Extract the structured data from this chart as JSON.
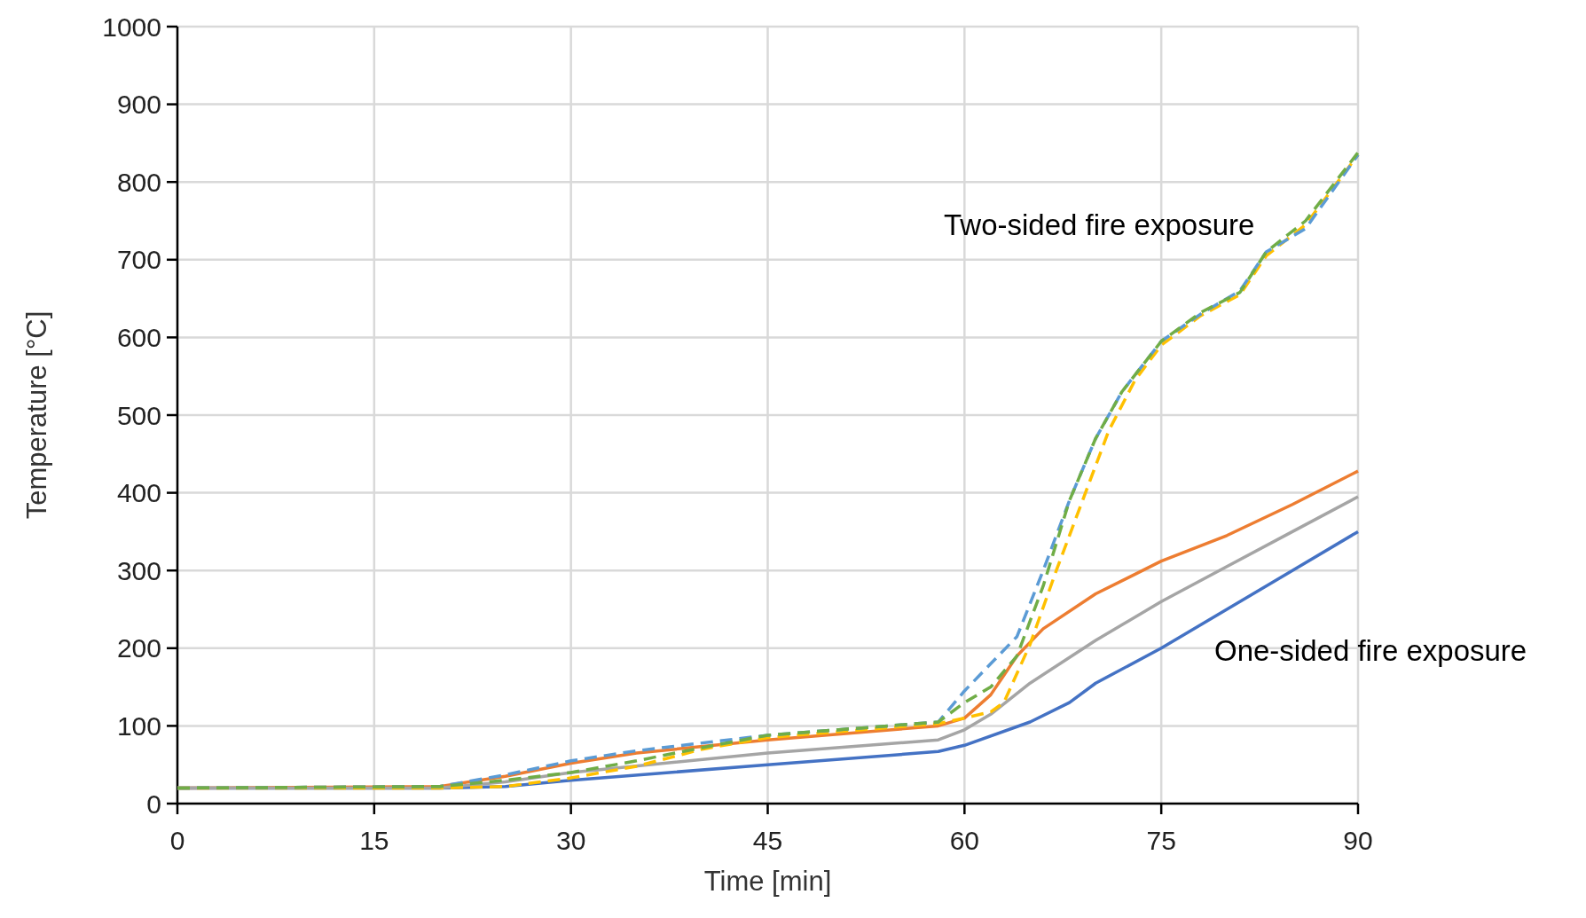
{
  "chart_data": {
    "type": "line",
    "xlabel": "Time [min]",
    "ylabel": "Temperature [°C]",
    "xlim": [
      0,
      90
    ],
    "ylim": [
      0,
      1000
    ],
    "xticks": [
      0,
      15,
      30,
      45,
      60,
      75,
      90
    ],
    "yticks": [
      0,
      100,
      200,
      300,
      400,
      500,
      600,
      700,
      800,
      900,
      1000
    ],
    "grid": true,
    "marker": "none",
    "annotations": [
      "Two-sided fire exposure",
      "One-sided fire exposure"
    ],
    "series": [
      {
        "color": "#4472c4",
        "line_style": "solid",
        "x": [
          0,
          20,
          25,
          30,
          45,
          58,
          60,
          65,
          68,
          70,
          75,
          80,
          85,
          90
        ],
        "values": [
          20,
          20,
          22,
          30,
          50,
          67,
          75,
          105,
          130,
          155,
          200,
          250,
          300,
          350
        ]
      },
      {
        "color": "#ed7d31",
        "line_style": "solid",
        "x": [
          0,
          20,
          25,
          30,
          35,
          45,
          58,
          60,
          62,
          64,
          66,
          70,
          75,
          80,
          85,
          90
        ],
        "values": [
          20,
          22,
          35,
          52,
          65,
          82,
          100,
          110,
          140,
          190,
          225,
          270,
          312,
          345,
          385,
          428
        ]
      },
      {
        "color": "#a5a5a5",
        "line_style": "solid",
        "x": [
          0,
          20,
          25,
          30,
          45,
          58,
          60,
          62,
          65,
          70,
          75,
          80,
          85,
          90
        ],
        "values": [
          20,
          20,
          28,
          40,
          65,
          82,
          95,
          115,
          155,
          210,
          260,
          305,
          350,
          395
        ]
      },
      {
        "color": "#ffc000",
        "line_style": "dashed",
        "x": [
          0,
          20,
          25,
          30,
          35,
          40,
          45,
          58,
          60,
          62,
          63,
          65,
          67,
          69,
          71,
          73,
          75,
          78,
          81,
          83,
          86,
          90
        ],
        "values": [
          20,
          20,
          22,
          33,
          48,
          70,
          85,
          103,
          110,
          118,
          130,
          205,
          300,
          390,
          480,
          545,
          590,
          628,
          655,
          705,
          745,
          835
        ]
      },
      {
        "color": "#5b9bd5",
        "line_style": "dashed",
        "x": [
          0,
          20,
          25,
          30,
          35,
          45,
          58,
          60,
          62,
          64,
          66,
          68,
          70,
          72,
          75,
          78,
          81,
          83,
          86,
          90
        ],
        "values": [
          20,
          22,
          37,
          55,
          68,
          88,
          105,
          145,
          180,
          215,
          300,
          390,
          470,
          530,
          595,
          630,
          660,
          710,
          740,
          835
        ]
      },
      {
        "color": "#70ad47",
        "line_style": "dashed",
        "x": [
          0,
          20,
          25,
          30,
          35,
          40,
          45,
          58,
          60,
          62,
          64,
          66,
          68,
          70,
          72,
          75,
          78,
          81,
          83,
          86,
          90
        ],
        "values": [
          20,
          22,
          30,
          40,
          55,
          72,
          88,
          105,
          130,
          150,
          190,
          280,
          390,
          470,
          530,
          595,
          632,
          658,
          710,
          750,
          838
        ]
      }
    ]
  }
}
